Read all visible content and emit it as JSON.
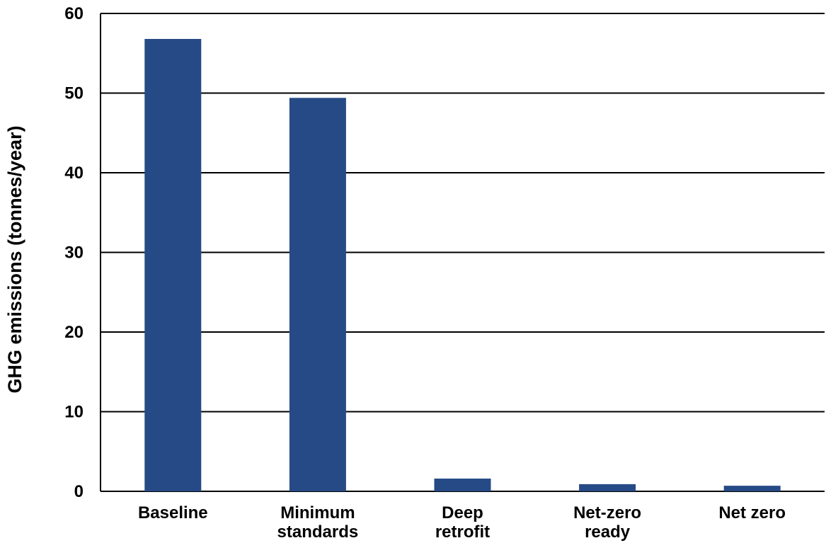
{
  "chart_data": {
    "type": "bar",
    "title": "",
    "xlabel": "",
    "ylabel": "GHG emissions (tonnes/year)",
    "categories": [
      [
        "Baseline"
      ],
      [
        "Minimum",
        "standards"
      ],
      [
        "Deep",
        "retrofit"
      ],
      [
        "Net-zero",
        "ready"
      ],
      [
        "Net zero"
      ]
    ],
    "values": [
      56.8,
      49.4,
      1.6,
      0.9,
      0.7
    ],
    "ylim": [
      0,
      60
    ],
    "yticks": [
      "0",
      "10",
      "20",
      "30",
      "40",
      "50",
      "60"
    ],
    "grid": true,
    "legend": "none",
    "bar_color": "#264a86"
  }
}
